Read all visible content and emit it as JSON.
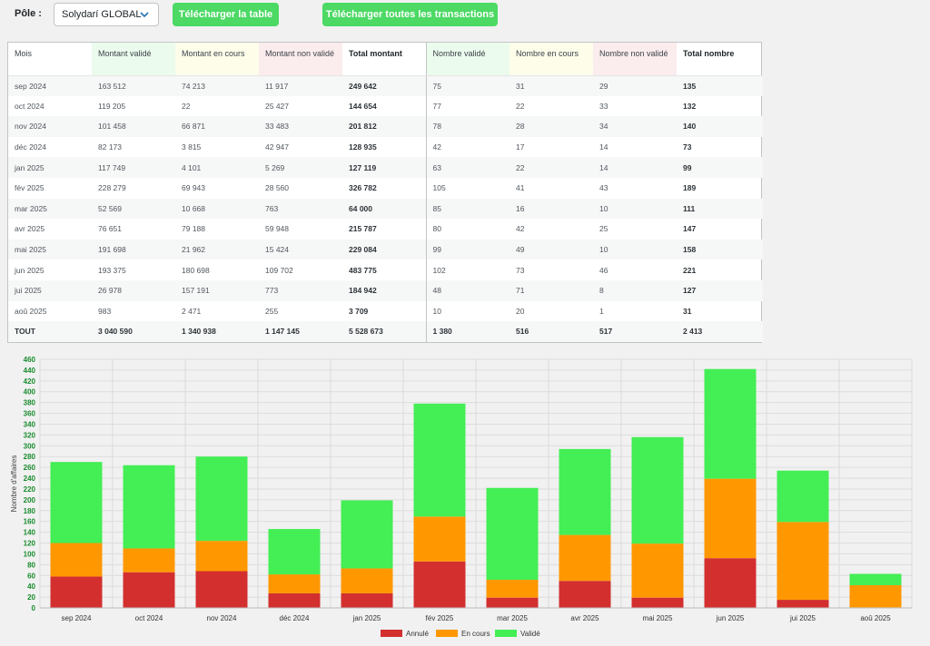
{
  "toolbar": {
    "pole_label": "Pôle :",
    "pole_selected": "Solydarí GLOBAL",
    "download_table": "Télécharger la table",
    "download_all": "Télécharger toutes les transactions"
  },
  "colors": {
    "annule": "#d32f2f",
    "en_cours": "#ff9800",
    "valide": "#44ee55",
    "button": "#4cd964"
  },
  "table": {
    "headers": [
      "Mois",
      "Montant validé",
      "Montant en cours",
      "Montant non validé",
      "Total montant",
      "Nombre validé",
      "Nombre en cours",
      "Nombre non validé",
      "Total nombre"
    ],
    "rows": [
      [
        "sep 2024",
        "163 512",
        "74 213",
        "11 917",
        "249 642",
        "75",
        "31",
        "29",
        "135"
      ],
      [
        "oct 2024",
        "119 205",
        "22",
        "25 427",
        "144 654",
        "77",
        "22",
        "33",
        "132"
      ],
      [
        "nov 2024",
        "101 458",
        "66 871",
        "33 483",
        "201 812",
        "78",
        "28",
        "34",
        "140"
      ],
      [
        "déc 2024",
        "82 173",
        "3 815",
        "42 947",
        "128 935",
        "42",
        "17",
        "14",
        "73"
      ],
      [
        "jan 2025",
        "117 749",
        "4 101",
        "5 269",
        "127 119",
        "63",
        "22",
        "14",
        "99"
      ],
      [
        "fév 2025",
        "228 279",
        "69 943",
        "28 560",
        "326 782",
        "105",
        "41",
        "43",
        "189"
      ],
      [
        "mar 2025",
        "52 569",
        "10 668",
        "763",
        "64 000",
        "85",
        "16",
        "10",
        "111"
      ],
      [
        "avr 2025",
        "76 651",
        "79 188",
        "59 948",
        "215 787",
        "80",
        "42",
        "25",
        "147"
      ],
      [
        "mai 2025",
        "191 698",
        "21 962",
        "15 424",
        "229 084",
        "99",
        "49",
        "10",
        "158"
      ],
      [
        "jun 2025",
        "193 375",
        "180 698",
        "109 702",
        "483 775",
        "102",
        "73",
        "46",
        "221"
      ],
      [
        "jui 2025",
        "26 978",
        "157 191",
        "773",
        "184 942",
        "48",
        "71",
        "8",
        "127"
      ],
      [
        "aoû 2025",
        "983",
        "2 471",
        "255",
        "3 709",
        "10",
        "20",
        "1",
        "31"
      ]
    ],
    "total": [
      "TOUT",
      "3 040 590",
      "1 340 938",
      "1 147 145",
      "5 528 673",
      "1 380",
      "516",
      "517",
      "2 413"
    ]
  },
  "chart_data": {
    "type": "bar",
    "stacked": true,
    "categories": [
      "sep 2024",
      "oct 2024",
      "nov 2024",
      "déc 2024",
      "jan 2025",
      "fév 2025",
      "mar 2025",
      "avr 2025",
      "mai 2025",
      "jun 2025",
      "jui 2025",
      "aoû 2025"
    ],
    "series": [
      {
        "name": "Annulé",
        "values": [
          58,
          66,
          68,
          27,
          27,
          86,
          19,
          50,
          19,
          92,
          15,
          1
        ]
      },
      {
        "name": "En cours",
        "values": [
          62,
          44,
          56,
          35,
          46,
          83,
          33,
          85,
          100,
          147,
          144,
          41
        ]
      },
      {
        "name": "Validé",
        "values": [
          150,
          154,
          156,
          84,
          126,
          209,
          170,
          159,
          197,
          203,
          95,
          21
        ]
      }
    ],
    "ylabel": "Nombre d'affaires",
    "xlabel": "",
    "ylim": [
      0,
      460
    ],
    "ytick_step": 20,
    "legend": "bottom-center"
  }
}
